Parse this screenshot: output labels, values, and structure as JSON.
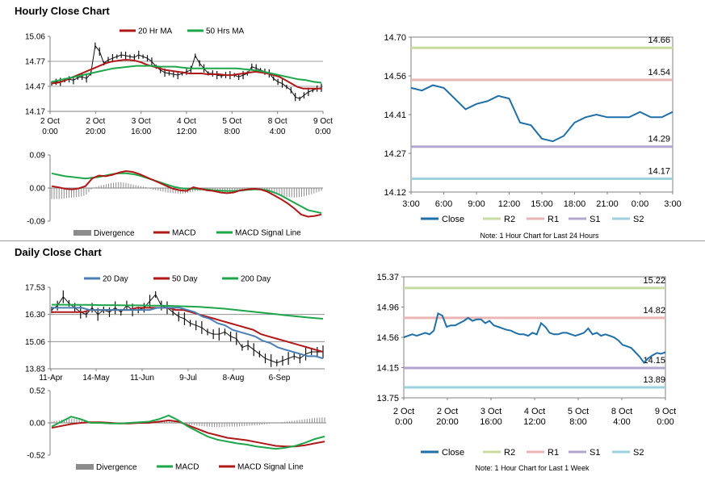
{
  "sections": {
    "hourly_title": "Hourly Close Chart",
    "daily_title": "Daily Close Chart"
  },
  "colors": {
    "red": "#b01818",
    "green": "#1ea64a",
    "blue": "#4a7fb5",
    "price": "#111111",
    "hist": "#8c8c8c",
    "close": "#1f6fa8",
    "r2": "#c8dca0",
    "r1": "#eab6b4",
    "s1": "#b5a6cf",
    "s2": "#9ed0de"
  },
  "chart_data": [
    {
      "id": "hourly_price",
      "type": "line",
      "legend": [
        "20 Hr MA",
        "50 Hrs MA"
      ],
      "yticks": [
        "15.06",
        "14.77",
        "14.47",
        "14.17"
      ],
      "ylim": [
        14.17,
        15.06
      ],
      "xticks": [
        "2 Oct\n0:00",
        "2 Oct\n20:00",
        "3 Oct\n16:00",
        "4 Oct\n12:00",
        "5 Oct\n8:00",
        "8 Oct\n4:00",
        "9 Oct\n0:00"
      ],
      "series": [
        {
          "name": "Price",
          "values": [
            14.5,
            14.52,
            14.52,
            14.54,
            14.55,
            14.54,
            14.57,
            14.58,
            14.56,
            14.62,
            14.95,
            14.88,
            14.74,
            14.78,
            14.8,
            14.82,
            14.84,
            14.83,
            14.82,
            14.81,
            14.84,
            14.82,
            14.8,
            14.76,
            14.7,
            14.66,
            14.63,
            14.62,
            14.61,
            14.6,
            14.62,
            14.64,
            14.66,
            14.83,
            14.74,
            14.68,
            14.62,
            14.62,
            14.6,
            14.59,
            14.6,
            14.6,
            14.6,
            14.58,
            14.6,
            14.62,
            14.7,
            14.68,
            14.66,
            14.64,
            14.62,
            14.56,
            14.52,
            14.5,
            14.46,
            14.42,
            14.34,
            14.32,
            14.36,
            14.4,
            14.42,
            14.44,
            14.45
          ]
        },
        {
          "name": "20 Hr MA",
          "values": [
            14.5,
            14.51,
            14.53,
            14.56,
            14.59,
            14.62,
            14.65,
            14.68,
            14.71,
            14.74,
            14.76,
            14.77,
            14.78,
            14.78,
            14.77,
            14.75,
            14.72,
            14.7,
            14.68,
            14.66,
            14.65,
            14.64,
            14.63,
            14.62,
            14.62,
            14.62,
            14.61,
            14.61,
            14.61,
            14.6,
            14.6,
            14.61,
            14.62,
            14.63,
            14.64,
            14.63,
            14.62,
            14.6,
            14.58,
            14.54,
            14.5,
            14.46,
            14.44,
            14.44,
            14.44,
            14.44
          ]
        },
        {
          "name": "50 Hrs MA",
          "values": [
            14.52,
            14.54,
            14.56,
            14.58,
            14.6,
            14.62,
            14.64,
            14.66,
            14.68,
            14.69,
            14.7,
            14.71,
            14.71,
            14.71,
            14.7,
            14.7,
            14.7,
            14.69,
            14.68,
            14.68,
            14.68,
            14.68,
            14.68,
            14.68,
            14.68,
            14.67,
            14.66,
            14.65,
            14.63,
            14.61,
            14.59,
            14.57,
            14.55,
            14.54,
            14.52,
            14.51
          ]
        }
      ]
    },
    {
      "id": "hourly_macd",
      "type": "line",
      "legend": [
        "Divergence",
        "MACD",
        "MACD Signal Line"
      ],
      "yticks": [
        "0.09",
        "0.00",
        "-0.09"
      ],
      "ylim": [
        -0.09,
        0.09
      ],
      "series": [
        {
          "name": "MACD",
          "values": [
            0.005,
            0.002,
            -0.002,
            -0.004,
            -0.001,
            0.005,
            0.026,
            0.034,
            0.032,
            0.036,
            0.042,
            0.046,
            0.044,
            0.038,
            0.03,
            0.022,
            0.014,
            0.006,
            -0.002,
            -0.006,
            -0.008,
            0.002,
            -0.002,
            -0.006,
            -0.008,
            -0.012,
            -0.014,
            -0.012,
            -0.006,
            -0.004,
            -0.002,
            -0.004,
            -0.01,
            -0.02,
            -0.03,
            -0.042,
            -0.056,
            -0.072,
            -0.078,
            -0.076,
            -0.072
          ]
        },
        {
          "name": "MACD Signal Line",
          "values": [
            0.04,
            0.036,
            0.032,
            0.03,
            0.028,
            0.026,
            0.028,
            0.03,
            0.034,
            0.038,
            0.04,
            0.04,
            0.038,
            0.034,
            0.028,
            0.022,
            0.016,
            0.01,
            0.004,
            0.0,
            -0.002,
            -0.002,
            -0.003,
            -0.004,
            -0.006,
            -0.007,
            -0.008,
            -0.008,
            -0.007,
            -0.005,
            -0.004,
            -0.004,
            -0.006,
            -0.012,
            -0.02,
            -0.03,
            -0.04,
            -0.05,
            -0.06,
            -0.064,
            -0.068
          ]
        },
        {
          "name": "Divergence",
          "values": [
            -0.03,
            -0.03,
            -0.028,
            -0.026,
            -0.024,
            -0.02,
            -0.002,
            0.006,
            0.01,
            0.014,
            0.016,
            0.014,
            0.01,
            0.006,
            0.002,
            -0.004,
            -0.008,
            -0.012,
            -0.014,
            -0.016,
            -0.014,
            -0.01,
            -0.008,
            -0.006,
            -0.008,
            -0.01,
            -0.012,
            -0.01,
            -0.008,
            -0.006,
            -0.004,
            -0.006,
            -0.01,
            -0.016,
            -0.02,
            -0.024,
            -0.026,
            -0.024,
            -0.02,
            -0.014,
            -0.008
          ]
        }
      ]
    },
    {
      "id": "hourly_pivot",
      "type": "line",
      "yticks": [
        "14.70",
        "14.56",
        "14.41",
        "14.27",
        "14.12"
      ],
      "ylim": [
        14.12,
        14.7
      ],
      "xticks": [
        "3:00",
        "6:00",
        "9:00",
        "12:00",
        "15:00",
        "18:00",
        "21:00",
        "0:00",
        "3:00"
      ],
      "legend": [
        "Close",
        "R2",
        "R1",
        "S1",
        "S2"
      ],
      "levels": {
        "R2": "14.66",
        "R1": "14.54",
        "S1": "14.29",
        "S2": "14.17"
      },
      "level_values": [
        14.66,
        14.54,
        14.29,
        14.17
      ],
      "note": "Note: 1 Hour Chart for Last 24 Hours",
      "x": [
        0,
        1,
        2,
        3,
        4,
        5,
        6,
        7,
        8,
        9,
        10,
        11,
        12,
        13,
        14,
        15,
        16,
        17,
        18,
        19,
        20,
        21,
        22,
        23,
        24
      ],
      "values": [
        14.51,
        14.5,
        14.52,
        14.51,
        14.47,
        14.43,
        14.45,
        14.46,
        14.48,
        14.47,
        14.38,
        14.37,
        14.32,
        14.31,
        14.33,
        14.38,
        14.4,
        14.41,
        14.4,
        14.4,
        14.4,
        14.42,
        14.4,
        14.4,
        14.42
      ]
    },
    {
      "id": "daily_price",
      "type": "line",
      "legend": [
        "20 Day",
        "50 Day",
        "200 Day"
      ],
      "yticks": [
        "17.53",
        "16.30",
        "15.06",
        "13.83"
      ],
      "ylim": [
        13.83,
        17.53
      ],
      "xticks": [
        "11-Apr",
        "14-May",
        "11-Jun",
        "9-Jul",
        "8-Aug",
        "6-Sep"
      ],
      "series": [
        {
          "name": "Price",
          "values": [
            16.5,
            16.7,
            17.1,
            16.8,
            16.6,
            16.4,
            16.3,
            16.6,
            16.3,
            16.5,
            16.4,
            16.6,
            16.4,
            16.7,
            16.5,
            16.5,
            16.6,
            16.9,
            17.2,
            16.7,
            16.6,
            16.4,
            16.2,
            16.1,
            15.9,
            15.8,
            15.7,
            15.5,
            15.4,
            15.4,
            15.5,
            15.3,
            15.2,
            14.8,
            14.9,
            14.7,
            14.5,
            14.3,
            14.2,
            14.1,
            14.2,
            14.3,
            14.4,
            14.3,
            14.5,
            14.6,
            14.6,
            14.6
          ]
        },
        {
          "name": "20 Day",
          "values": [
            16.6,
            16.6,
            16.6,
            16.6,
            16.6,
            16.5,
            16.5,
            16.5,
            16.5,
            16.5,
            16.5,
            16.5,
            16.5,
            16.5,
            16.6,
            16.6,
            16.6,
            16.6,
            16.5,
            16.4,
            16.2,
            16.1,
            15.9,
            15.8,
            15.6,
            15.5,
            15.4,
            15.3,
            15.1,
            15.0,
            14.8,
            14.7,
            14.6,
            14.5,
            14.4,
            14.4,
            14.3
          ]
        },
        {
          "name": "50 Day",
          "values": [
            16.4,
            16.4,
            16.4,
            16.4,
            16.4,
            16.5,
            16.5,
            16.5,
            16.5,
            16.5,
            16.5,
            16.6,
            16.6,
            16.6,
            16.6,
            16.6,
            16.5,
            16.5,
            16.4,
            16.3,
            16.2,
            16.1,
            16.0,
            15.9,
            15.8,
            15.7,
            15.6,
            15.4,
            15.3,
            15.2,
            15.1,
            15.0,
            14.9,
            14.8,
            14.7,
            14.6
          ]
        },
        {
          "name": "200 Day",
          "values": [
            16.74,
            16.74,
            16.73,
            16.73,
            16.72,
            16.72,
            16.71,
            16.71,
            16.7,
            16.7,
            16.68,
            16.66,
            16.64,
            16.6,
            16.56,
            16.5,
            16.44,
            16.38,
            16.32,
            16.26,
            16.2,
            16.15,
            16.1
          ]
        }
      ]
    },
    {
      "id": "daily_macd",
      "type": "line",
      "legend": [
        "Divergence",
        "MACD",
        "MACD Signal Line"
      ],
      "yticks": [
        "0.52",
        "0.00",
        "-0.52"
      ],
      "ylim": [
        -0.52,
        0.52
      ],
      "series": [
        {
          "name": "MACD",
          "values": [
            -0.06,
            0.02,
            0.1,
            0.06,
            0.0,
            0.0,
            -0.01,
            -0.01,
            0.0,
            0.01,
            0.02,
            0.06,
            0.12,
            0.04,
            -0.06,
            -0.14,
            -0.22,
            -0.27,
            -0.3,
            -0.33,
            -0.35,
            -0.38,
            -0.4,
            -0.42,
            -0.4,
            -0.37,
            -0.32,
            -0.26,
            -0.22
          ]
        },
        {
          "name": "MACD Signal Line",
          "values": [
            -0.08,
            -0.05,
            -0.02,
            0.0,
            0.01,
            0.01,
            0.0,
            -0.01,
            -0.01,
            0.0,
            0.0,
            0.02,
            0.04,
            0.02,
            -0.04,
            -0.1,
            -0.16,
            -0.2,
            -0.24,
            -0.26,
            -0.28,
            -0.31,
            -0.34,
            -0.37,
            -0.38,
            -0.38,
            -0.36,
            -0.33,
            -0.3
          ]
        },
        {
          "name": "Divergence",
          "values": [
            0.02,
            0.05,
            0.07,
            0.05,
            0.02,
            0.0,
            -0.01,
            0.0,
            0.01,
            0.01,
            0.02,
            0.03,
            0.05,
            0.02,
            -0.02,
            -0.05,
            -0.06,
            -0.07,
            -0.06,
            -0.06,
            -0.05,
            -0.04,
            -0.02,
            0.0,
            0.02,
            0.04,
            0.06,
            0.08,
            0.09
          ]
        }
      ]
    },
    {
      "id": "daily_pivot",
      "type": "line",
      "yticks": [
        "15.37",
        "14.96",
        "14.56",
        "14.15",
        "13.75"
      ],
      "ylim": [
        13.75,
        15.37
      ],
      "xticks": [
        "2 Oct\n0:00",
        "2 Oct\n20:00",
        "3 Oct\n16:00",
        "4 Oct\n12:00",
        "5 Oct\n8:00",
        "8 Oct\n4:00",
        "9 Oct\n0:00"
      ],
      "legend": [
        "Close",
        "R2",
        "R1",
        "S1",
        "S2"
      ],
      "levels": {
        "R2": "15.22",
        "R1": "14.82",
        "S1": "14.15",
        "S2": "13.89"
      },
      "level_values": [
        15.22,
        14.82,
        14.15,
        13.89
      ],
      "note": "Note: 1 Hour Chart for Last 1 Week",
      "x": [
        0,
        2,
        4,
        6,
        8,
        10,
        12,
        14,
        16,
        18,
        20,
        22,
        24,
        26,
        28,
        30,
        32,
        34,
        36,
        38,
        40,
        42,
        44,
        46,
        48,
        50,
        52,
        54,
        56,
        58,
        60,
        62,
        64,
        66,
        68,
        70,
        72,
        74,
        76,
        78,
        80,
        82,
        84,
        86,
        88,
        90,
        92,
        94,
        96,
        98,
        100,
        102,
        104,
        106,
        108,
        110,
        112,
        114,
        116,
        118,
        120,
        122
      ],
      "values": [
        14.56,
        14.58,
        14.6,
        14.58,
        14.6,
        14.62,
        14.6,
        14.65,
        14.88,
        14.85,
        14.7,
        14.72,
        14.72,
        14.75,
        14.78,
        14.82,
        14.78,
        14.8,
        14.8,
        14.75,
        14.78,
        14.72,
        14.7,
        14.68,
        14.66,
        14.65,
        14.62,
        14.6,
        14.6,
        14.58,
        14.62,
        14.6,
        14.75,
        14.7,
        14.62,
        14.6,
        14.6,
        14.62,
        14.62,
        14.6,
        14.58,
        14.6,
        14.62,
        14.68,
        14.6,
        14.62,
        14.58,
        14.6,
        14.58,
        14.56,
        14.52,
        14.46,
        14.44,
        14.42,
        14.36,
        14.3,
        14.22,
        14.28,
        14.32,
        14.35,
        14.34,
        14.36
      ]
    }
  ]
}
